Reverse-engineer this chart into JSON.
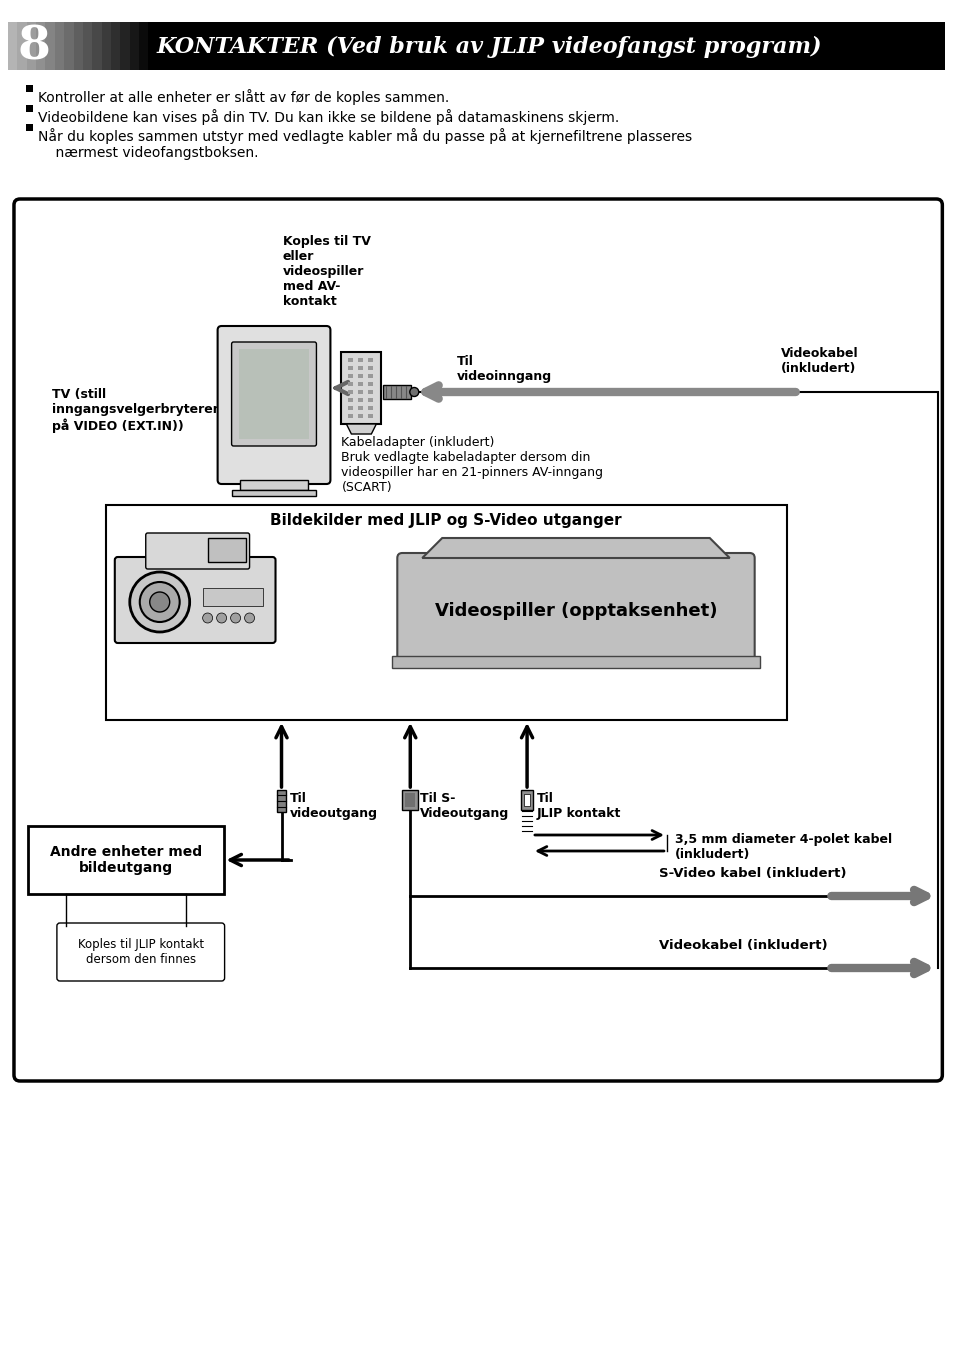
{
  "bg": "#ffffff",
  "title": "KONTAKTER (Ved bruk av JLIP videofangst program)",
  "page_num": "8",
  "bullets": [
    "Kontroller at alle enheter er slått av før de koples sammen.",
    "Videobildene kan vises på din TV. Du kan ikke se bildene på datamaskinens skjerm.",
    "Når du koples sammen utstyr med vedlagte kabler må du passe på at kjernefiltrene plasseres\n    nærmest videofangstboksen."
  ],
  "lbl_koples_tv": "Koples til TV\neller\nvideospiller\nmed AV-\nkontakt",
  "lbl_til_videoinngang": "Til\nvideoinngang",
  "lbl_videokabel": "Videokabel\n(inkludert)",
  "lbl_tv": "TV (still\ninngangsvelgerbryteren\npå VIDEO (EXT.IN))",
  "lbl_kabeladapter": "Kabeladapter (inkludert)\nBruk vedlagte kabeladapter dersom din\nvideospiller har en 21-pinners AV-inngang\n(SCART)",
  "lbl_bildekilder": "Bildekilder med JLIP og S-Video utganger",
  "lbl_videospiller": "Videospiller (opptaksenhet)",
  "lbl_til_videoutgang": "Til\nvideoutgang",
  "lbl_til_s_video": "Til S-\nVideoutgang",
  "lbl_til_jlip": "Til\nJLIP kontakt",
  "lbl_andre": "Andre enheter med\nbildeutgang",
  "lbl_koples_jlip": "Koples til JLIP kontakt\ndersom den finnes",
  "lbl_diameter": "3,5 mm diameter 4-polet kabel\n(inkludert)",
  "lbl_svideo": "S-Video kabel (inkludert)",
  "lbl_videokabel2": "Videokabel (inkludert)"
}
